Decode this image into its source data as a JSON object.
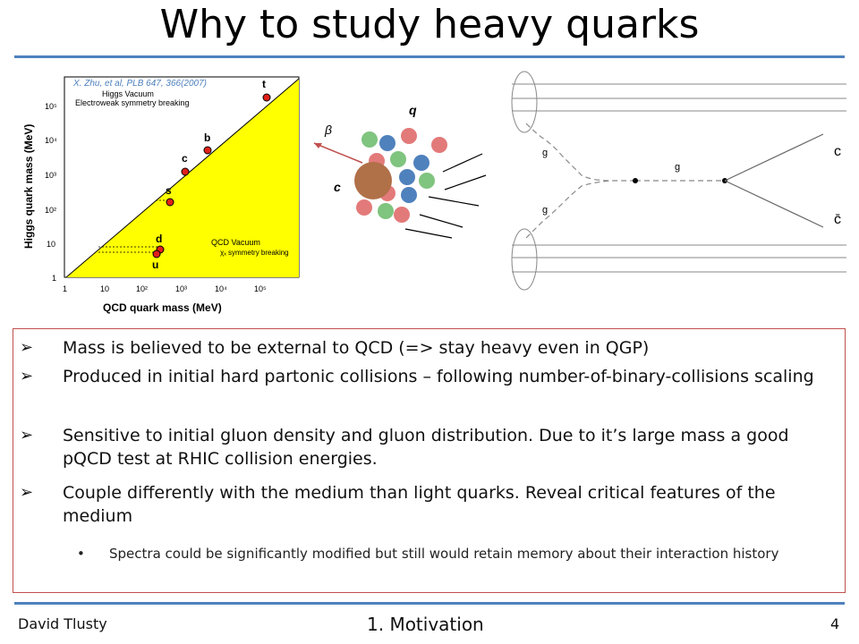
{
  "slide": {
    "title": "Why to study heavy quarks"
  },
  "figure_left": {
    "citation_text": "X. Zhu, et al, PLB 647, 366(2007)",
    "y_axis_label": "Higgs quark mass (MeV)",
    "x_axis_label": "QCD quark mass (MeV)",
    "upper_label_line1": "Higgs Vacuum",
    "upper_label_line2": "Electroweak symmetry breaking",
    "lower_label_line1": "QCD Vacuum",
    "lower_label_line2": "χₓ symmetry breaking",
    "y_ticks": [
      "10⁵",
      "10⁴",
      "10³",
      "10²",
      "10",
      "1"
    ],
    "x_ticks": [
      "1",
      "10",
      "10²",
      "10³",
      "10⁴",
      "10⁵"
    ],
    "quark_labels": [
      "t",
      "b",
      "c",
      "s",
      "d",
      "u"
    ]
  },
  "figure_middle": {
    "beta_label": "β",
    "q_label": "q",
    "c_label": "c"
  },
  "figure_right": {
    "gluon_labels": [
      "g",
      "g",
      "g"
    ],
    "quark_label_top": "c",
    "quark_label_bottom": "c̄"
  },
  "bullets": [
    {
      "arrow": "➢",
      "text": "Mass is believed to be external to QCD (=> stay heavy even in QGP)"
    },
    {
      "arrow": "➢",
      "text": "Produced in initial hard partonic collisions – following number-of-binary-collisions scaling"
    },
    {
      "arrow": "➢",
      "text": "Sensitive to initial gluon density and gluon distribution. Due to it’s large mass a good pQCD test at RHIC collision energies."
    },
    {
      "arrow": "➢",
      "text": "Couple differently with the medium than light quarks. Reveal critical features of the medium"
    }
  ],
  "sub_bullet": {
    "dot": "•",
    "text": "Spectra could be significantly modified but still would retain memory about their interaction history"
  },
  "footer": {
    "author": "David Tlusty",
    "section": "1.   Motivation",
    "page": "4"
  },
  "colors": {
    "rule": "#4f81bd",
    "box_border": "#c0504d",
    "yellow": "#ffff00",
    "citation": "#4f81bd"
  }
}
